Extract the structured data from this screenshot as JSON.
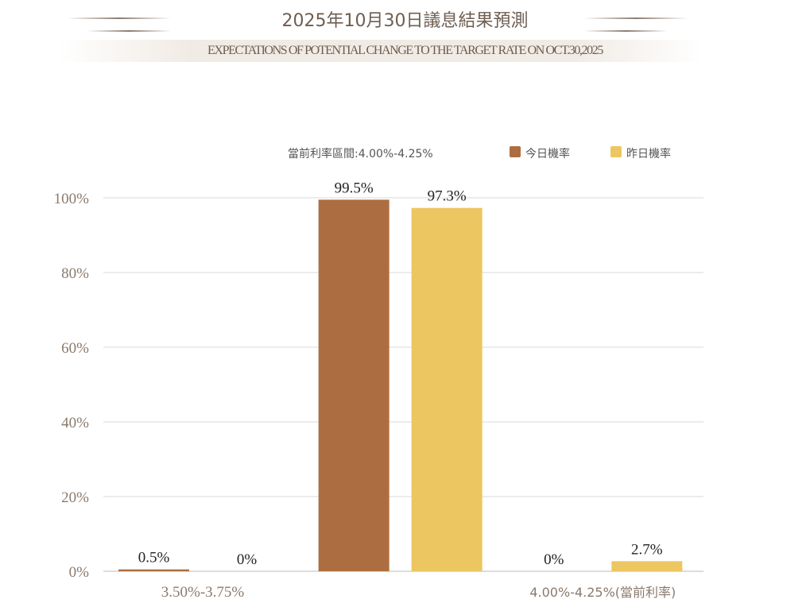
{
  "header": {
    "title": "2025年10月30日議息結果預測",
    "subtitle": "EXPECTATIONS OF POTENTIAL CHANGE TO THE TARGET RATE ON OCT.30,2025"
  },
  "legend": {
    "note": "當前利率區間:4.00%-4.25%",
    "items": [
      {
        "label": "今日機率",
        "color": "#ac6e40"
      },
      {
        "label": "昨日機率",
        "color": "#ecc660"
      }
    ]
  },
  "chart_data": {
    "type": "bar",
    "categories": [
      "3.50%-3.75%",
      "",
      "4.00%-4.25%(當前利率)"
    ],
    "series": [
      {
        "name": "今日機率",
        "values": [
          0.5,
          99.5,
          0
        ],
        "labels": [
          "0.5%",
          "99.5%",
          "0%"
        ],
        "color": "#ac6e40"
      },
      {
        "name": "昨日機率",
        "values": [
          0,
          97.3,
          2.7
        ],
        "labels": [
          "0%",
          "97.3%",
          "2.7%"
        ],
        "color": "#ecc660"
      }
    ],
    "ylim": [
      0,
      100
    ],
    "yticks": [
      "0%",
      "20%",
      "40%",
      "60%",
      "80%",
      "100%"
    ],
    "grid": true,
    "legend_position": "top-right"
  }
}
